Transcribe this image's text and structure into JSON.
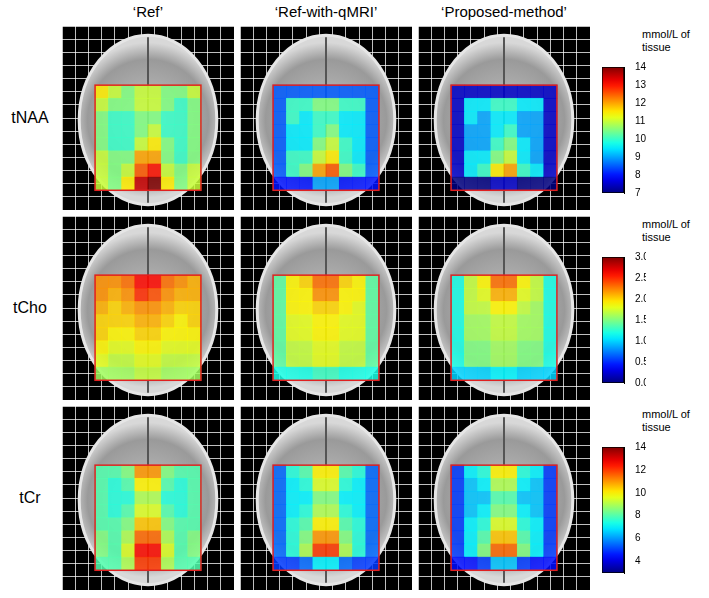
{
  "chart_data": {
    "type": "heatmap",
    "column_titles": [
      "‘Ref’",
      "‘Ref-with-qMRI’",
      "‘Proposed-method’"
    ],
    "colorbar_label": "mmol/L of tissue",
    "grid": true,
    "tick_labels": false,
    "rows": [
      {
        "label": "tNAA",
        "colorbar_range": [
          7,
          14
        ],
        "colorbar_ticks": [
          7,
          8,
          9,
          10,
          11,
          12,
          13,
          14
        ],
        "panels": [
          [
            [
              11.5,
              11,
              10.5,
              11,
              11,
              10.5,
              10.5,
              11
            ],
            [
              11,
              10.5,
              10.5,
              11,
              11,
              10.5,
              10,
              10.5
            ],
            [
              10.5,
              10,
              10,
              10.5,
              10.5,
              10,
              10,
              10.5
            ],
            [
              10.5,
              10,
              10,
              10.5,
              11,
              10,
              10,
              10.5
            ],
            [
              10.5,
              10,
              10,
              11,
              11.5,
              10.5,
              10,
              10.5
            ],
            [
              11,
              10.5,
              10.5,
              12,
              12,
              10.5,
              10,
              10.5
            ],
            [
              11,
              10.5,
              11,
              12.5,
              13,
              11,
              10.5,
              11
            ],
            [
              11,
              10.5,
              11.5,
              13.5,
              14,
              11.5,
              10.5,
              11
            ]
          ],
          [
            [
              8.5,
              8.5,
              8.5,
              8.5,
              8.5,
              8.5,
              8.5,
              8.5
            ],
            [
              8.5,
              10,
              10,
              10.5,
              10.5,
              10,
              10,
              8.5
            ],
            [
              8.5,
              10,
              9.5,
              10,
              10,
              9.5,
              9.5,
              8.5
            ],
            [
              8.5,
              9.5,
              9.5,
              10,
              10.5,
              9.5,
              9.5,
              8.5
            ],
            [
              8.5,
              9.5,
              9.5,
              10.5,
              11,
              10,
              9.5,
              8.5
            ],
            [
              8.5,
              10,
              10,
              11,
              11.5,
              10,
              9.5,
              8.5
            ],
            [
              8.5,
              10,
              10.5,
              12,
              12.5,
              10.5,
              10,
              8.5
            ],
            [
              8,
              8,
              8,
              9,
              9,
              8,
              8,
              8
            ]
          ],
          [
            [
              7.5,
              7.5,
              7.5,
              7.5,
              7.5,
              7.5,
              7.5,
              7.5
            ],
            [
              7.5,
              9.5,
              9.5,
              10,
              10,
              9.5,
              9.5,
              7.5
            ],
            [
              7.5,
              9.5,
              9,
              9.5,
              9.5,
              9,
              9,
              7.5
            ],
            [
              7.5,
              9,
              9,
              9.5,
              10,
              9,
              9,
              7.5
            ],
            [
              7.5,
              9,
              9,
              10,
              10.5,
              9.5,
              9,
              7.5
            ],
            [
              7.5,
              9.5,
              9.5,
              10.5,
              11,
              9.5,
              9,
              7.5
            ],
            [
              7.5,
              9.5,
              10,
              11.5,
              12,
              10,
              9.5,
              7.5
            ],
            [
              7,
              7,
              7,
              7.5,
              7.5,
              7,
              7,
              7
            ]
          ]
        ]
      },
      {
        "label": "tCho",
        "colorbar_range": [
          0,
          3
        ],
        "colorbar_ticks": [
          {
            "value": 0,
            "label": "0.0"
          },
          {
            "value": 0.5,
            "label": "0.5"
          },
          {
            "value": 1,
            "label": "1.0"
          },
          {
            "value": 1.5,
            "label": "1.5"
          },
          {
            "value": 2,
            "label": "2.0"
          },
          {
            "value": 2.5,
            "label": "2.5"
          },
          {
            "value": 3,
            "label": "3.0"
          }
        ],
        "panels": [
          [
            [
              2.2,
              2.2,
              2.3,
              2.6,
              2.6,
              2.3,
              2.2,
              2.1
            ],
            [
              2.2,
              2.1,
              2.2,
              2.5,
              2.4,
              2.2,
              2.1,
              2.1
            ],
            [
              2.1,
              2.0,
              2.1,
              2.2,
              2.2,
              2.1,
              2.0,
              2.0
            ],
            [
              2.0,
              2.0,
              2.0,
              2.1,
              2.1,
              2.0,
              1.9,
              2.0
            ],
            [
              2.0,
              1.9,
              1.9,
              2.0,
              2.0,
              1.9,
              1.9,
              1.9
            ],
            [
              1.9,
              1.8,
              1.8,
              1.9,
              1.9,
              1.8,
              1.8,
              1.8
            ],
            [
              1.8,
              1.7,
              1.7,
              1.8,
              1.8,
              1.7,
              1.7,
              1.7
            ],
            [
              1.6,
              1.6,
              1.6,
              1.7,
              1.7,
              1.6,
              1.6,
              1.6
            ]
          ],
          [
            [
              1.4,
              1.9,
              2.0,
              2.3,
              2.3,
              2.0,
              1.9,
              1.4
            ],
            [
              1.4,
              1.9,
              1.9,
              2.2,
              2.2,
              1.9,
              1.9,
              1.4
            ],
            [
              1.4,
              1.9,
              1.9,
              2.0,
              2.0,
              1.9,
              1.8,
              1.4
            ],
            [
              1.4,
              1.8,
              1.8,
              1.9,
              1.9,
              1.8,
              1.8,
              1.4
            ],
            [
              1.4,
              1.8,
              1.8,
              1.9,
              1.9,
              1.8,
              1.8,
              1.4
            ],
            [
              1.4,
              1.7,
              1.7,
              1.8,
              1.8,
              1.7,
              1.7,
              1.4
            ],
            [
              1.4,
              1.7,
              1.7,
              1.8,
              1.8,
              1.7,
              1.7,
              1.4
            ],
            [
              1.2,
              1.2,
              1.2,
              1.3,
              1.3,
              1.2,
              1.2,
              1.2
            ]
          ],
          [
            [
              1.2,
              1.7,
              1.9,
              2.3,
              2.3,
              1.9,
              1.7,
              1.2
            ],
            [
              1.2,
              1.7,
              1.8,
              2.1,
              2.1,
              1.8,
              1.7,
              1.2
            ],
            [
              1.2,
              1.7,
              1.7,
              1.9,
              1.9,
              1.7,
              1.6,
              1.2
            ],
            [
              1.2,
              1.6,
              1.6,
              1.7,
              1.7,
              1.6,
              1.6,
              1.2
            ],
            [
              1.2,
              1.6,
              1.6,
              1.7,
              1.7,
              1.6,
              1.6,
              1.2
            ],
            [
              1.2,
              1.5,
              1.5,
              1.6,
              1.6,
              1.5,
              1.5,
              1.2
            ],
            [
              1.2,
              1.5,
              1.5,
              1.6,
              1.6,
              1.5,
              1.5,
              1.2
            ],
            [
              1.0,
              1.0,
              1.0,
              1.1,
              1.1,
              1.0,
              1.0,
              1.0
            ]
          ]
        ]
      },
      {
        "label": "tCr",
        "colorbar_range": [
          3,
          14
        ],
        "colorbar_ticks": [
          4,
          6,
          8,
          10,
          12,
          14
        ],
        "panels": [
          [
            [
              8,
              8,
              8.5,
              11,
              11,
              8.5,
              8,
              8
            ],
            [
              8,
              7.5,
              8,
              10,
              10,
              8,
              7.5,
              8
            ],
            [
              8,
              7.5,
              7.5,
              9,
              9,
              7.5,
              7.5,
              8
            ],
            [
              8,
              7.5,
              8,
              9.5,
              9.5,
              8,
              7.5,
              8
            ],
            [
              8,
              8,
              8.5,
              10.5,
              10.5,
              8.5,
              8,
              8
            ],
            [
              8.5,
              8,
              9,
              11.5,
              11.5,
              9,
              8,
              8.5
            ],
            [
              8.5,
              8,
              9.5,
              12.5,
              12.5,
              9.5,
              8,
              8.5
            ],
            [
              8,
              8,
              9,
              12,
              12,
              9,
              8,
              8
            ]
          ],
          [
            [
              5.5,
              7.5,
              8,
              10,
              10,
              8,
              7.5,
              5.5
            ],
            [
              5.5,
              7,
              7.5,
              9.5,
              9.5,
              7.5,
              7,
              5.5
            ],
            [
              5.5,
              7,
              7,
              8.5,
              8.5,
              7,
              7,
              5.5
            ],
            [
              5.5,
              7,
              7.5,
              9,
              9,
              7.5,
              7,
              5.5
            ],
            [
              5.5,
              7.5,
              8,
              10,
              10,
              8,
              7.5,
              5.5
            ],
            [
              5.5,
              7.5,
              8.5,
              11,
              11,
              8.5,
              7.5,
              5.5
            ],
            [
              5.5,
              7.5,
              9,
              12,
              12,
              9,
              7.5,
              5.5
            ],
            [
              5,
              5,
              5.5,
              7,
              7,
              5.5,
              5,
              5
            ]
          ],
          [
            [
              5,
              7,
              7.5,
              10,
              10,
              7.5,
              7,
              5
            ],
            [
              5,
              6.5,
              7,
              9,
              9,
              7,
              6.5,
              5
            ],
            [
              5,
              6.5,
              6.5,
              8,
              8,
              6.5,
              6.5,
              5
            ],
            [
              5,
              6.5,
              7,
              8.5,
              8.5,
              7,
              6.5,
              5
            ],
            [
              5,
              7,
              7.5,
              9.5,
              9.5,
              7.5,
              7,
              5
            ],
            [
              5,
              7,
              8,
              10.5,
              10.5,
              8,
              7,
              5
            ],
            [
              5,
              7,
              8.5,
              11.5,
              11.5,
              8.5,
              7,
              5
            ],
            [
              4.5,
              4.5,
              5,
              6.5,
              6.5,
              5,
              4.5,
              4.5
            ]
          ]
        ]
      }
    ]
  }
}
